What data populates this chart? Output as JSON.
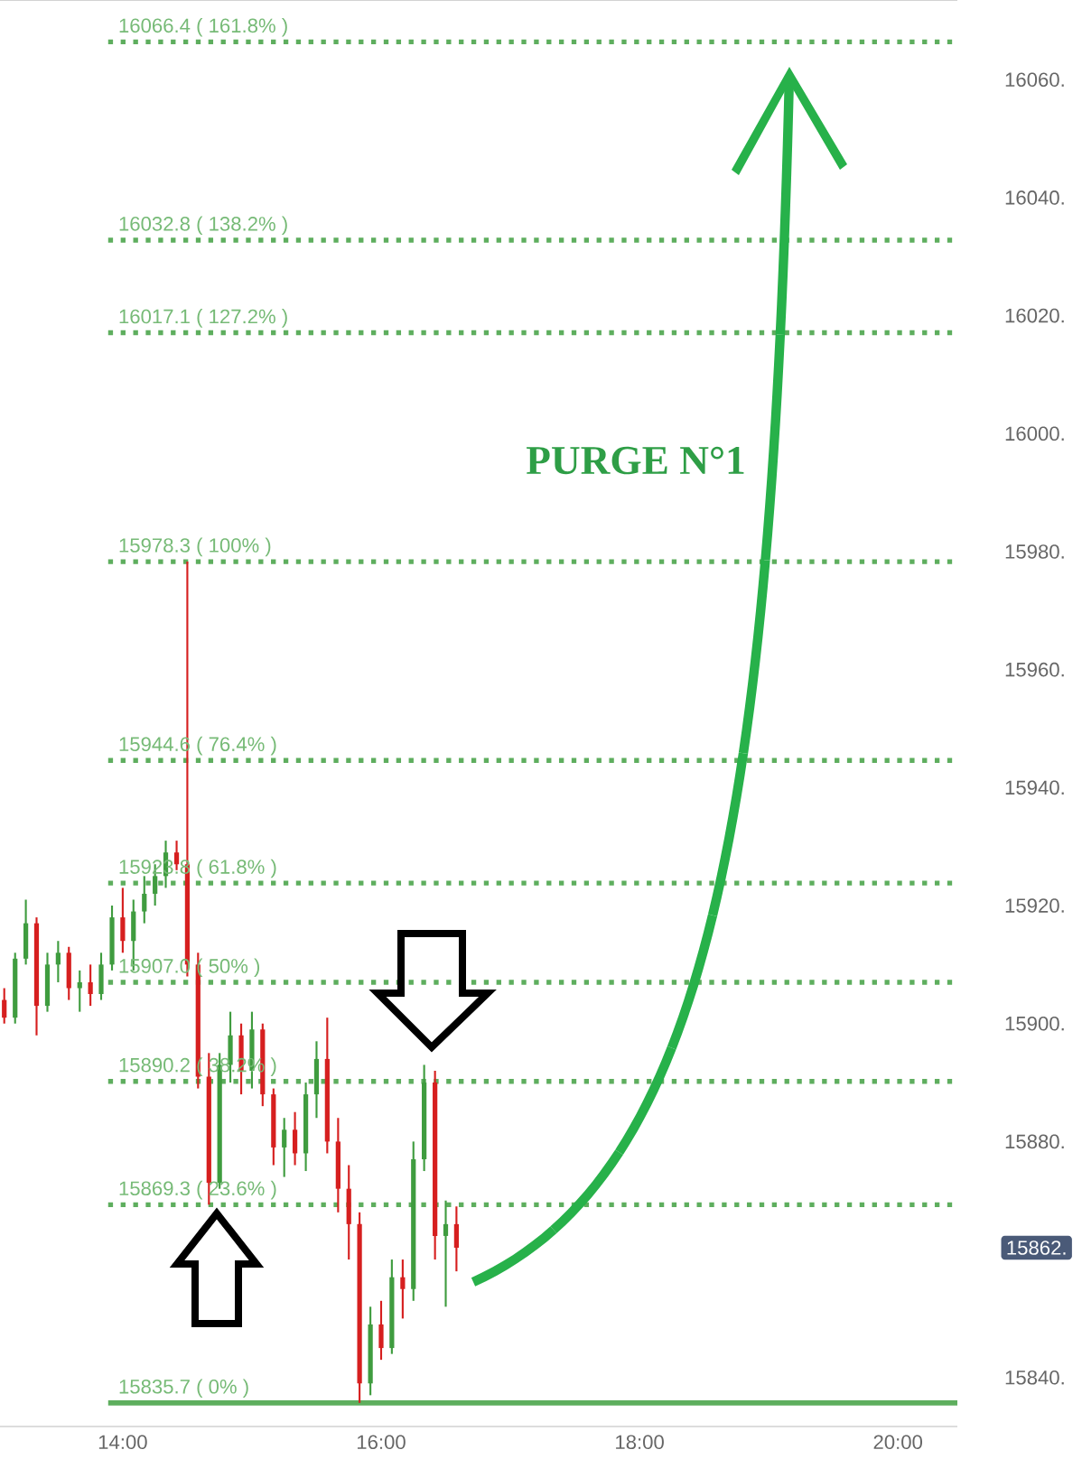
{
  "chart_data": {
    "type": "candlestick",
    "x": [
      13.083,
      13.167,
      13.25,
      13.333,
      13.417,
      13.5,
      13.583,
      13.667,
      13.75,
      13.833,
      13.917,
      14,
      14.083,
      14.167,
      14.25,
      14.333,
      14.417,
      14.5,
      14.583,
      14.667,
      14.75,
      14.833,
      14.917,
      15,
      15.083,
      15.167,
      15.25,
      15.333,
      15.417,
      15.5,
      15.583,
      15.667,
      15.75,
      15.833,
      15.917,
      16,
      16.083,
      16.167,
      16.25,
      16.333,
      16.417,
      16.5,
      16.583
    ],
    "ohlc": [
      [
        15904,
        15906,
        15900,
        15901
      ],
      [
        15901,
        15912,
        15900,
        15911
      ],
      [
        15911,
        15921,
        15910,
        15917
      ],
      [
        15917,
        15918,
        15898,
        15903
      ],
      [
        15903,
        15912,
        15902,
        15910
      ],
      [
        15910,
        15914,
        15907,
        15912
      ],
      [
        15912,
        15913,
        15904,
        15906
      ],
      [
        15906,
        15909,
        15902,
        15907
      ],
      [
        15907,
        15910,
        15903,
        15905
      ],
      [
        15905,
        15912,
        15904,
        15910
      ],
      [
        15910,
        15920,
        15909,
        15918
      ],
      [
        15918,
        15923,
        15912,
        15914
      ],
      [
        15914,
        15921,
        15909,
        15919
      ],
      [
        15919,
        15925,
        15917,
        15922
      ],
      [
        15922,
        15927,
        15920,
        15925
      ],
      [
        15925,
        15931,
        15923,
        15929
      ],
      [
        15929,
        15931,
        15926,
        15927
      ],
      [
        15927,
        15978.3,
        15908,
        15910
      ],
      [
        15910,
        15912,
        15889,
        15891
      ],
      [
        15891,
        15895,
        15869.3,
        15873
      ],
      [
        15873,
        15895,
        15872,
        15893
      ],
      [
        15893,
        15902,
        15890,
        15898
      ],
      [
        15898,
        15900,
        15888,
        15892
      ],
      [
        15892,
        15902,
        15889,
        15899
      ],
      [
        15899,
        15900,
        15886,
        15888
      ],
      [
        15888,
        15889,
        15876,
        15879
      ],
      [
        15879,
        15884,
        15874,
        15882
      ],
      [
        15882,
        15885,
        15876,
        15878
      ],
      [
        15878,
        15890,
        15875,
        15888
      ],
      [
        15888,
        15897,
        15884,
        15894
      ],
      [
        15894,
        15901,
        15878,
        15880
      ],
      [
        15880,
        15884,
        15868,
        15872
      ],
      [
        15872,
        15876,
        15860,
        15866
      ],
      [
        15866,
        15868,
        15835.7,
        15839
      ],
      [
        15839,
        15852,
        15837,
        15849
      ],
      [
        15849,
        15853,
        15843,
        15845
      ],
      [
        15845,
        15860,
        15844,
        15857
      ],
      [
        15857,
        15860,
        15850,
        15855
      ],
      [
        15855,
        15880,
        15853,
        15877
      ],
      [
        15877,
        15893,
        15875,
        15890
      ],
      [
        15890,
        15892,
        15860,
        15864
      ],
      [
        15864,
        15870,
        15852,
        15866
      ],
      [
        15866,
        15869,
        15858,
        15862
      ]
    ],
    "xlim": [
      13.05,
      20.46
    ],
    "ylim": [
      15831.7,
      16073.5
    ],
    "xticks": [
      {
        "value": 14,
        "label": "14:00"
      },
      {
        "value": 16,
        "label": "16:00"
      },
      {
        "value": 18,
        "label": "18:00"
      },
      {
        "value": 20,
        "label": "20:00"
      }
    ],
    "yticks": [
      {
        "value": 15840,
        "label": "15840."
      },
      {
        "value": 15880,
        "label": "15880."
      },
      {
        "value": 15900,
        "label": "15900."
      },
      {
        "value": 15920,
        "label": "15920."
      },
      {
        "value": 15940,
        "label": "15940."
      },
      {
        "value": 15960,
        "label": "15960."
      },
      {
        "value": 15980,
        "label": "15980."
      },
      {
        "value": 16000,
        "label": "16000."
      },
      {
        "value": 16020,
        "label": "16020."
      },
      {
        "value": 16040,
        "label": "16040."
      },
      {
        "value": 16060,
        "label": "16060."
      }
    ],
    "ref_lines": [
      {
        "axis": "y",
        "value": 16066.4,
        "label": "16066.4 ( 161.8% )",
        "color": "#5eae5e",
        "line_style": "dotted"
      },
      {
        "axis": "y",
        "value": 16032.8,
        "label": "16032.8 ( 138.2% )",
        "color": "#5eae5e",
        "line_style": "dotted"
      },
      {
        "axis": "y",
        "value": 16017.1,
        "label": "16017.1 ( 127.2% )",
        "color": "#5eae5e",
        "line_style": "dotted"
      },
      {
        "axis": "y",
        "value": 15978.3,
        "label": "15978.3 ( 100% )",
        "color": "#5eae5e",
        "line_style": "dotted"
      },
      {
        "axis": "y",
        "value": 15944.6,
        "label": "15944.6 ( 76.4% )",
        "color": "#5eae5e",
        "line_style": "dotted"
      },
      {
        "axis": "y",
        "value": 15923.8,
        "label": "15923.8 ( 61.8% )",
        "color": "#5eae5e",
        "line_style": "dotted"
      },
      {
        "axis": "y",
        "value": 15907.0,
        "label": "15907.0 ( 50% )",
        "color": "#5eae5e",
        "line_style": "dotted"
      },
      {
        "axis": "y",
        "value": 15890.2,
        "label": "15890.2 ( 38.2% )",
        "color": "#5eae5e",
        "line_style": "dotted"
      },
      {
        "axis": "y",
        "value": 15869.3,
        "label": "15869.3 ( 23.6% )",
        "color": "#5eae5e",
        "line_style": "dotted"
      },
      {
        "axis": "y",
        "value": 15835.7,
        "label": "15835.7 ( 0% )",
        "color": "#5eae5e",
        "line_style": "solid"
      }
    ],
    "annotations": [
      "PURGE N°1",
      "15862."
    ]
  }
}
